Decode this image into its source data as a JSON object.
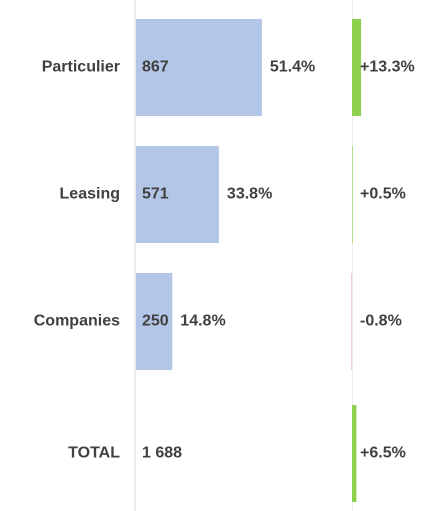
{
  "chart_data": {
    "type": "bar",
    "categories": [
      "Particulier",
      "Leasing",
      "Companies"
    ],
    "values": [
      867,
      571,
      250
    ],
    "color": "#b4c6e7",
    "xlim": [
      0,
      2100
    ],
    "shares": {
      "values": [
        51.4,
        33.8,
        14.8
      ],
      "value_labels": [
        "51.4%",
        "33.8%",
        "14.8%"
      ]
    },
    "changes": {
      "values": [
        13.3,
        0.5,
        -0.8
      ],
      "value_labels": [
        "+13.3%",
        "+0.5%",
        "-0.8%"
      ],
      "x2lim": [
        -20,
        20
      ],
      "positive_color": "#8fd14f",
      "negative_color": "#e8a3a3"
    },
    "total": {
      "label": "TOTAL",
      "value": 1688,
      "value_label": "1 688",
      "change": 6.5,
      "change_label": "+6.5%"
    }
  }
}
